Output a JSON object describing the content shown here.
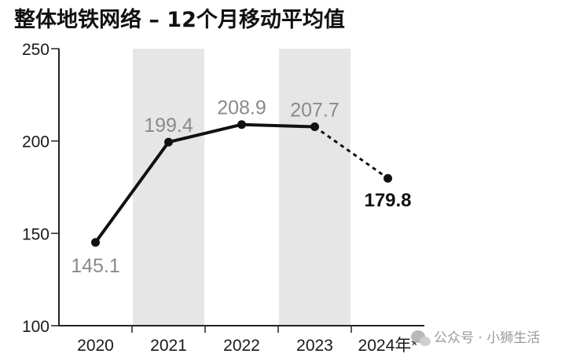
{
  "chart_data": {
    "type": "line",
    "title": "整体地铁网络 – 12个月移动平均值",
    "categories": [
      "2020",
      "2021",
      "2022",
      "2023",
      "2024年*"
    ],
    "series": [
      {
        "values": [
          145.1,
          199.4,
          208.9,
          207.7,
          179.8
        ],
        "value_labels": [
          "145.1",
          "199.4",
          "208.9",
          "207.7",
          "179.8"
        ],
        "solid_segments": [
          [
            0,
            1
          ],
          [
            1,
            2
          ],
          [
            2,
            3
          ]
        ],
        "dashed_segments": [
          [
            3,
            4
          ]
        ],
        "highlight_index": 4
      }
    ],
    "y_ticks": [
      "100",
      "150",
      "200",
      "250"
    ],
    "ylim": [
      100,
      250
    ],
    "shaded_categories": [
      "2021",
      "2023"
    ],
    "grid": false,
    "legend": "none",
    "colors": {
      "line": "#111111",
      "shade": "#e6e6e6",
      "label": "#8a8a8a",
      "highlight_label": "#111111",
      "axis": "#222222"
    }
  },
  "watermark": {
    "text": "公众号 · 小狮生活",
    "icon": "wechat-icon"
  }
}
